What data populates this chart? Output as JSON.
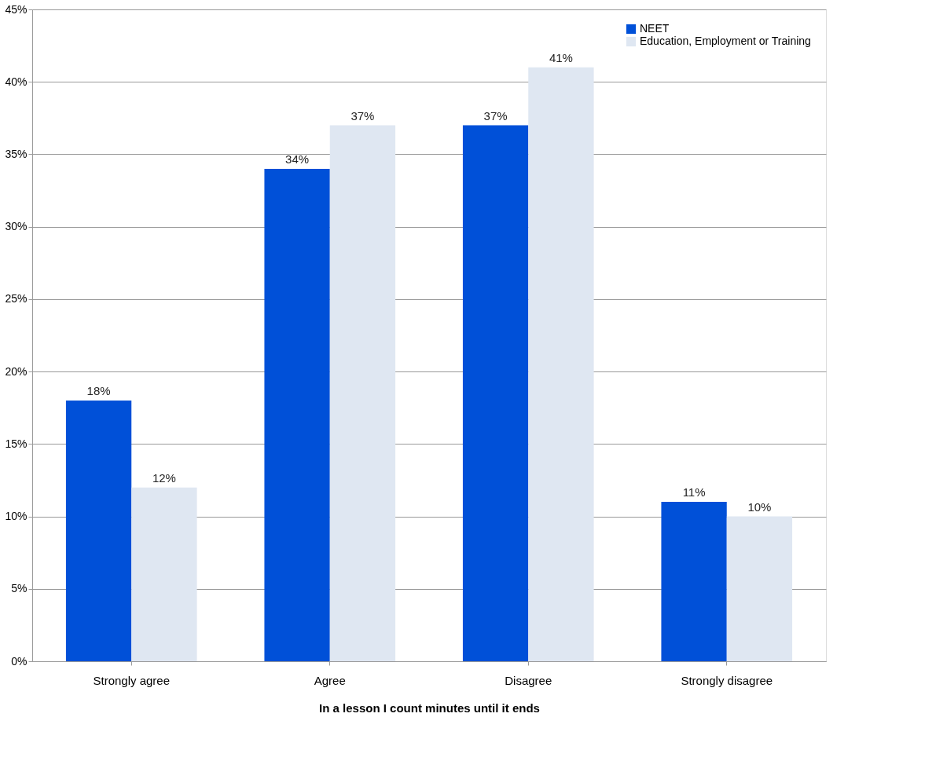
{
  "chart_data": {
    "type": "bar",
    "xlabel": "In a lesson  I count minutes until it ends",
    "categories": [
      "Strongly agree",
      "Agree",
      "Disagree",
      "Strongly disagree"
    ],
    "series": [
      {
        "name": "NEET",
        "color": "#0050d8",
        "values": [
          18,
          34,
          37,
          11
        ],
        "value_labels": [
          "18%",
          "34%",
          "37%",
          "11%"
        ]
      },
      {
        "name": "Education, Employment or Training",
        "color": "#dfe7f2",
        "values": [
          12,
          37,
          41,
          10
        ],
        "value_labels": [
          "12%",
          "37%",
          "41%",
          "10%"
        ]
      }
    ],
    "ylim": [
      0,
      45
    ],
    "yticks": [
      {
        "value": 0,
        "label": "0%"
      },
      {
        "value": 5,
        "label": "5%"
      },
      {
        "value": 10,
        "label": "10%"
      },
      {
        "value": 15,
        "label": "15%"
      },
      {
        "value": 20,
        "label": "20%"
      },
      {
        "value": 25,
        "label": "25%"
      },
      {
        "value": 30,
        "label": "30%"
      },
      {
        "value": 35,
        "label": "35%"
      },
      {
        "value": 40,
        "label": "40%"
      },
      {
        "value": 45,
        "label": "45%"
      }
    ],
    "grid": "y",
    "legend": "top right"
  }
}
